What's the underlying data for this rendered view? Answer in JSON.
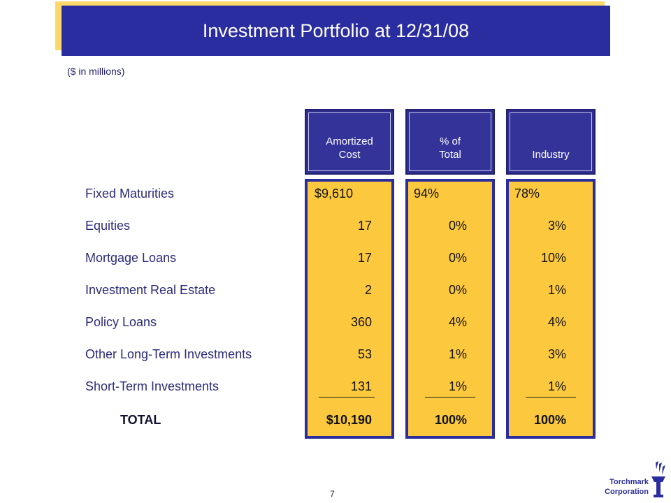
{
  "title": "Investment Portfolio at 12/31/08",
  "subtitle": "($ in millions)",
  "columns": {
    "amortized": "Amortized\nCost",
    "pct": "% of\nTotal",
    "industry": "Industry"
  },
  "rows": [
    {
      "label": "Fixed Maturities",
      "amortized": "$9,610",
      "pct": "94%",
      "industry": "78%"
    },
    {
      "label": "Equities",
      "amortized": "17",
      "pct": "0%",
      "industry": "3%"
    },
    {
      "label": "Mortgage Loans",
      "amortized": "17",
      "pct": "0%",
      "industry": "10%"
    },
    {
      "label": "Investment Real Estate",
      "amortized": "2",
      "pct": "0%",
      "industry": "1%"
    },
    {
      "label": "Policy Loans",
      "amortized": "360",
      "pct": "4%",
      "industry": "4%"
    },
    {
      "label": "Other Long-Term Investments",
      "amortized": "53",
      "pct": "1%",
      "industry": "3%"
    },
    {
      "label": "Short-Term Investments",
      "amortized": "131",
      "pct": "1%",
      "industry": "1%"
    }
  ],
  "total": {
    "label": "TOTAL",
    "amortized": "$10,190",
    "pct": "100%",
    "industry": "100%"
  },
  "page_number": "7",
  "company": {
    "line1": "Torchmark",
    "line2": "Corporation"
  },
  "colors": {
    "navy": "#2a2da0",
    "gold": "#fcc93e",
    "title_shadow": "#fad96a"
  }
}
